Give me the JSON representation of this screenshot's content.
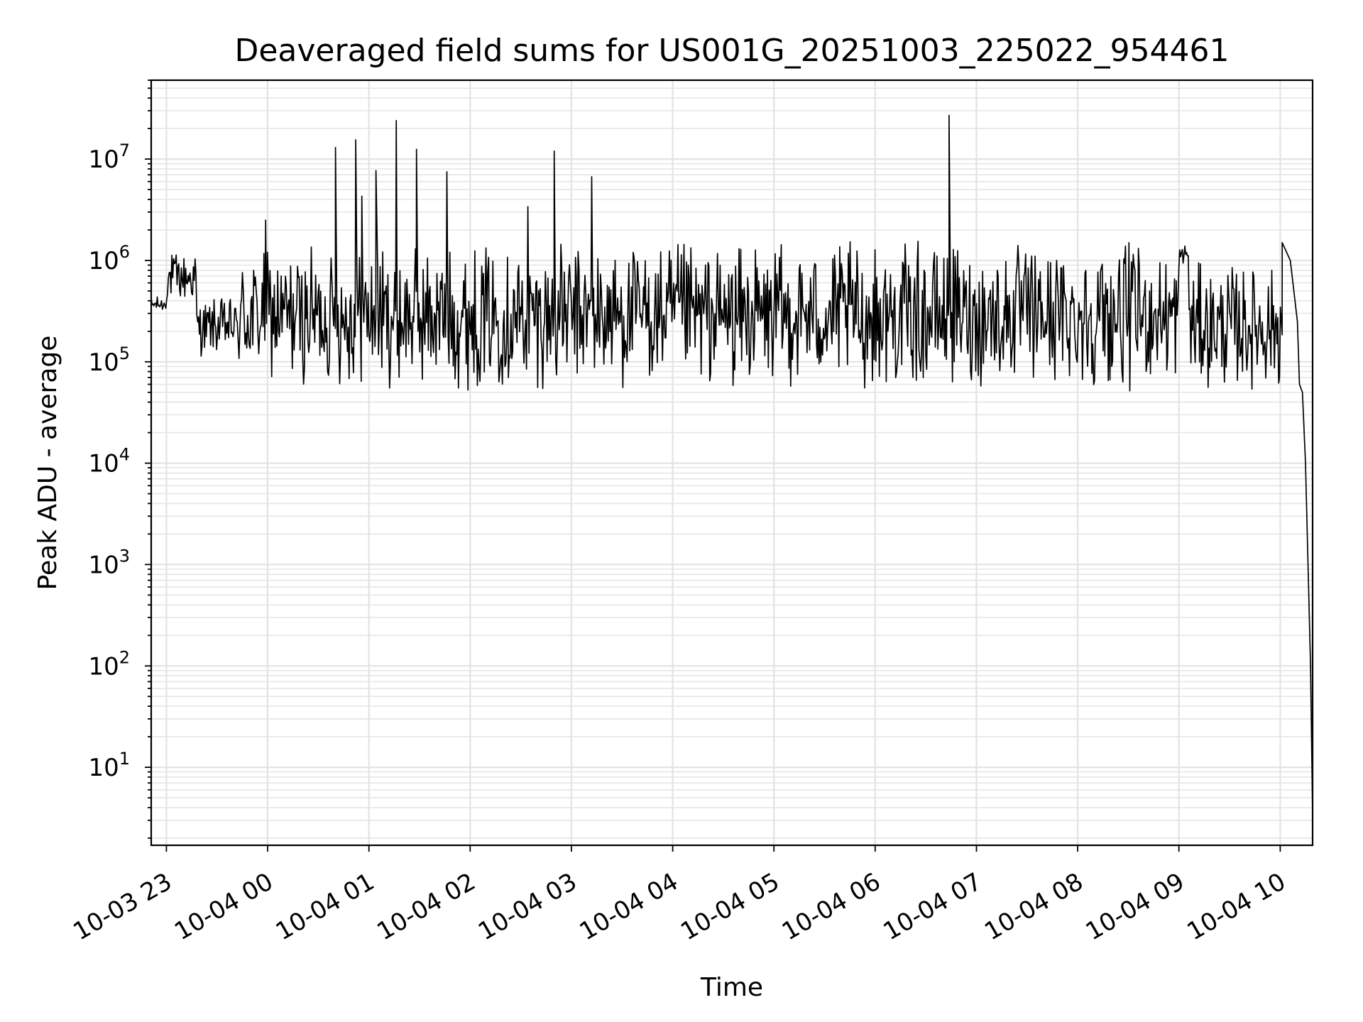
{
  "chart_data": {
    "type": "line",
    "title": "Deaveraged field sums for US001G_20251003_225022_954461",
    "xlabel": "Time",
    "ylabel": "Peak ADU - average",
    "yscale": "log",
    "ylim": [
      1.7,
      60000000
    ],
    "xlim_hours": [
      -0.15,
      11.32
    ],
    "x_tick_labels": [
      "10-03 23",
      "10-04 00",
      "10-04 01",
      "10-04 02",
      "10-04 03",
      "10-04 04",
      "10-04 05",
      "10-04 06",
      "10-04 07",
      "10-04 08",
      "10-04 09",
      "10-04 10"
    ],
    "x_tick_hours": [
      0,
      1,
      2,
      3,
      4,
      5,
      6,
      7,
      8,
      9,
      10,
      11
    ],
    "y_ticks": [
      {
        "value": 10,
        "base": "10",
        "exp": "1"
      },
      {
        "value": 100,
        "base": "10",
        "exp": "2"
      },
      {
        "value": 1000,
        "base": "10",
        "exp": "3"
      },
      {
        "value": 10000,
        "base": "10",
        "exp": "4"
      },
      {
        "value": 100000,
        "base": "10",
        "exp": "5"
      },
      {
        "value": 1000000,
        "base": "10",
        "exp": "6"
      },
      {
        "value": 10000000,
        "base": "10",
        "exp": "7"
      }
    ],
    "grid": true,
    "series": [
      {
        "name": "deaveraged field sum",
        "color": "#000000",
        "x_start_hour": -0.15,
        "x_end_hour": 11.32,
        "baseline_segments": [
          {
            "from_hour": -0.15,
            "to_hour": 0.0,
            "low": 300000,
            "high": 450000
          },
          {
            "from_hour": 0.0,
            "to_hour": 0.3,
            "low": 350000,
            "high": 1300000
          },
          {
            "from_hour": 0.3,
            "to_hour": 0.7,
            "low": 110000,
            "high": 450000
          },
          {
            "from_hour": 0.7,
            "to_hour": 1.7,
            "low": 55000,
            "high": 1450000
          },
          {
            "from_hour": 1.7,
            "to_hour": 10.0,
            "low": 50000,
            "high": 1600000
          },
          {
            "from_hour": 10.0,
            "to_hour": 10.1,
            "low": 900000,
            "high": 1500000
          },
          {
            "from_hour": 10.1,
            "to_hour": 11.17,
            "low": 50000,
            "high": 1000000
          }
        ],
        "spikes": [
          {
            "hour": 0.98,
            "value": 2500000
          },
          {
            "hour": 1.67,
            "value": 13000000
          },
          {
            "hour": 1.87,
            "value": 15500000
          },
          {
            "hour": 1.93,
            "value": 4300000
          },
          {
            "hour": 2.07,
            "value": 7700000
          },
          {
            "hour": 2.27,
            "value": 24000000
          },
          {
            "hour": 2.47,
            "value": 12500000
          },
          {
            "hour": 2.77,
            "value": 7500000
          },
          {
            "hour": 3.57,
            "value": 3400000
          },
          {
            "hour": 3.83,
            "value": 12000000
          },
          {
            "hour": 4.2,
            "value": 6700000
          },
          {
            "hour": 7.73,
            "value": 27000000
          }
        ],
        "tail": [
          {
            "hour": 11.02,
            "value": 1500000
          },
          {
            "hour": 11.1,
            "value": 1000000
          },
          {
            "hour": 11.17,
            "value": 250000
          },
          {
            "hour": 11.19,
            "value": 60000
          },
          {
            "hour": 11.22,
            "value": 50000
          },
          {
            "hour": 11.25,
            "value": 10000
          },
          {
            "hour": 11.3,
            "value": 100
          },
          {
            "hour": 11.32,
            "value": 3.5
          }
        ]
      }
    ]
  }
}
